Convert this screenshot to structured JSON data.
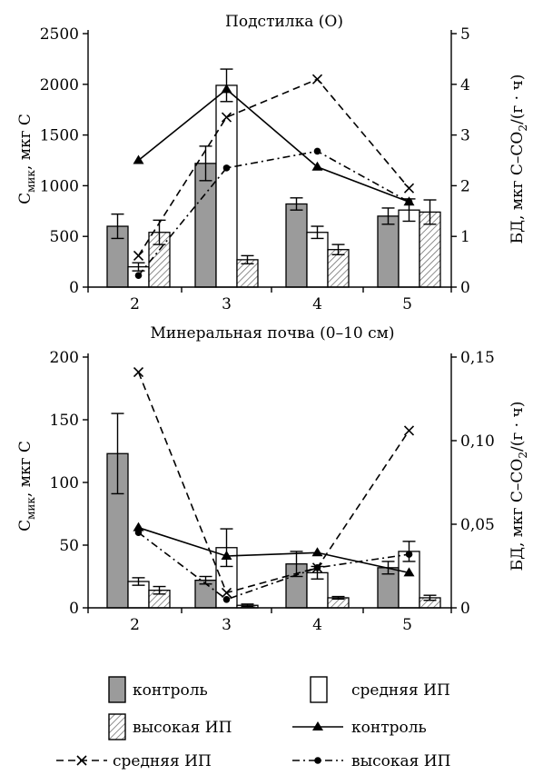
{
  "chart_data": [
    {
      "type": "bar",
      "title": "Подстилка (О)",
      "categories": [
        "2",
        "3",
        "4",
        "5"
      ],
      "ylabel_left_main": "С",
      "ylabel_left_sub": "мик",
      "ylabel_left_rest": ", мкг С",
      "ylabel_right_pre": "БД, мкг С–СО",
      "ylabel_right_sub": "2",
      "ylabel_right_post": "/(г · ч)",
      "ylim_left": [
        0,
        2500
      ],
      "ylim_right": [
        0,
        5
      ],
      "yticks_left": [
        "0",
        "500",
        "1000",
        "1500",
        "2000",
        "2500"
      ],
      "yticks_right": [
        "0",
        "1",
        "2",
        "3",
        "4",
        "5"
      ],
      "bar_series": [
        {
          "name": "контроль",
          "values": [
            600,
            1220,
            820,
            700
          ],
          "errors": [
            120,
            170,
            60,
            80
          ]
        },
        {
          "name": "средняя ИП",
          "values": [
            200,
            1990,
            540,
            760
          ],
          "errors": [
            40,
            160,
            60,
            110
          ]
        },
        {
          "name": "высокая ИП",
          "values": [
            540,
            270,
            370,
            740
          ],
          "errors": [
            120,
            40,
            50,
            120
          ]
        }
      ],
      "line_series": [
        {
          "name": "контроль",
          "values": [
            2.5,
            3.9,
            2.37,
            1.68
          ]
        },
        {
          "name": "средняя ИП",
          "values": [
            0.62,
            3.35,
            4.1,
            1.95
          ]
        },
        {
          "name": "высокая ИП",
          "values": [
            0.23,
            2.35,
            2.68,
            1.68
          ]
        }
      ]
    },
    {
      "type": "bar",
      "title": "Минеральная почва (0–10 см)",
      "categories": [
        "2",
        "3",
        "4",
        "5"
      ],
      "ylabel_left_main": "С",
      "ylabel_left_sub": "мик",
      "ylabel_left_rest": ", мкг С",
      "ylabel_right_pre": "БД, мкг С–СО",
      "ylabel_right_sub": "2",
      "ylabel_right_post": "/(г · ч)",
      "ylim_left": [
        0,
        200
      ],
      "ylim_right": [
        0,
        0.15
      ],
      "yticks_left": [
        "0",
        "50",
        "100",
        "150",
        "200"
      ],
      "yticks_right": [
        "0",
        "0,05",
        "0,10",
        "0,15"
      ],
      "bar_series": [
        {
          "name": "контроль",
          "values": [
            123,
            22,
            35,
            32
          ],
          "errors": [
            32,
            3,
            10,
            5
          ]
        },
        {
          "name": "средняя ИП",
          "values": [
            21,
            48,
            28,
            45
          ],
          "errors": [
            3,
            15,
            5,
            8
          ]
        },
        {
          "name": "высокая ИП",
          "values": [
            14,
            2,
            8,
            8
          ],
          "errors": [
            3,
            1,
            1,
            2
          ]
        }
      ],
      "line_series": [
        {
          "name": "контроль",
          "values": [
            0.048,
            0.031,
            0.033,
            0.021
          ]
        },
        {
          "name": "средняя ИП",
          "values": [
            0.141,
            0.009,
            0.024,
            0.106
          ]
        },
        {
          "name": "высокая ИП",
          "values": [
            0.045,
            0.005,
            0.024,
            0.032
          ]
        }
      ]
    }
  ],
  "legend": [
    {
      "kind": "bar",
      "style": "control",
      "label": "контроль"
    },
    {
      "kind": "bar",
      "style": "medium",
      "label": "средняя ИП"
    },
    {
      "kind": "bar",
      "style": "high",
      "label": "высокая ИП"
    },
    {
      "kind": "line",
      "style": "control",
      "label": "контроль"
    },
    {
      "kind": "line",
      "style": "medium",
      "label": "средняя ИП"
    },
    {
      "kind": "line",
      "style": "high",
      "label": "высокая ИП"
    }
  ],
  "colors": {
    "control_bar": "#9b9b9b",
    "medium_bar": "#ffffff",
    "high_bar_hatch": "#707070",
    "ink": "#000000"
  }
}
